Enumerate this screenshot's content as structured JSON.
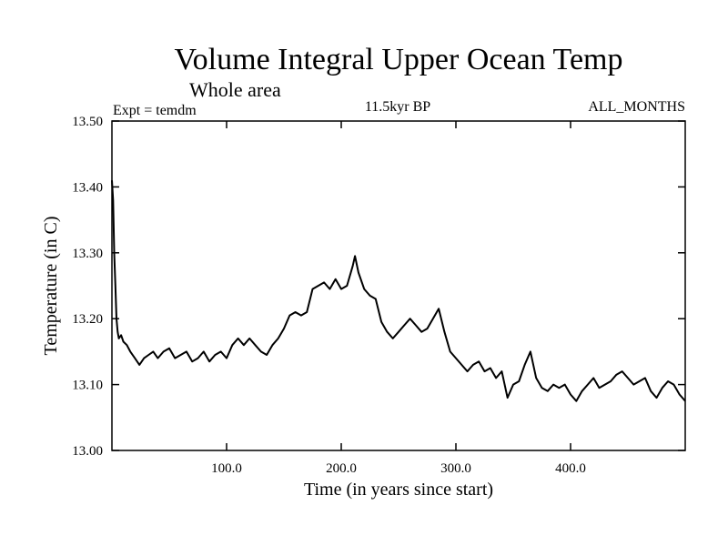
{
  "chart_data": {
    "type": "line",
    "title": "Volume Integral Upper Ocean Temp",
    "subtitle": "Whole area",
    "expt_label": "Expt = temdm",
    "period_label": "11.5kyr BP",
    "months_label": "ALL_MONTHS",
    "xlabel": "Time (in years since start)",
    "ylabel": "Temperature (in C)",
    "xlim": [
      0,
      500
    ],
    "ylim": [
      13.0,
      13.5
    ],
    "xticks": [
      100,
      200,
      300,
      400
    ],
    "xtick_labels": [
      "100.0",
      "200.0",
      "300.0",
      "400.0"
    ],
    "yticks": [
      13.0,
      13.1,
      13.2,
      13.3,
      13.4,
      13.5
    ],
    "ytick_labels": [
      "13.00",
      "13.10",
      "13.20",
      "13.30",
      "13.40",
      "13.50"
    ],
    "grid": false,
    "series": [
      {
        "name": "temdm",
        "color": "#000000",
        "x": [
          0,
          1,
          2,
          3,
          4,
          5,
          6,
          8,
          10,
          13,
          16,
          20,
          24,
          28,
          32,
          36,
          40,
          45,
          50,
          55,
          60,
          65,
          70,
          75,
          80,
          85,
          90,
          95,
          100,
          105,
          110,
          115,
          120,
          125,
          130,
          135,
          140,
          145,
          150,
          155,
          160,
          165,
          170,
          175,
          180,
          185,
          190,
          195,
          200,
          205,
          210,
          212,
          215,
          220,
          225,
          230,
          235,
          240,
          245,
          250,
          255,
          260,
          265,
          270,
          275,
          280,
          285,
          290,
          295,
          300,
          305,
          310,
          315,
          320,
          325,
          330,
          335,
          340,
          345,
          350,
          355,
          360,
          365,
          370,
          375,
          380,
          385,
          390,
          395,
          400,
          405,
          410,
          415,
          420,
          425,
          430,
          435,
          440,
          445,
          450,
          455,
          460,
          465,
          470,
          475,
          480,
          485,
          490,
          495,
          500
        ],
        "values": [
          13.41,
          13.38,
          13.3,
          13.25,
          13.2,
          13.18,
          13.17,
          13.175,
          13.165,
          13.16,
          13.15,
          13.14,
          13.13,
          13.14,
          13.145,
          13.15,
          13.14,
          13.15,
          13.155,
          13.14,
          13.145,
          13.15,
          13.135,
          13.14,
          13.15,
          13.135,
          13.145,
          13.15,
          13.14,
          13.16,
          13.17,
          13.16,
          13.17,
          13.16,
          13.15,
          13.145,
          13.16,
          13.17,
          13.185,
          13.205,
          13.21,
          13.205,
          13.21,
          13.245,
          13.25,
          13.255,
          13.245,
          13.26,
          13.245,
          13.25,
          13.28,
          13.295,
          13.27,
          13.245,
          13.235,
          13.23,
          13.195,
          13.18,
          13.17,
          13.18,
          13.19,
          13.2,
          13.19,
          13.18,
          13.185,
          13.2,
          13.215,
          13.18,
          13.15,
          13.14,
          13.13,
          13.12,
          13.13,
          13.135,
          13.12,
          13.125,
          13.11,
          13.12,
          13.08,
          13.1,
          13.105,
          13.13,
          13.15,
          13.11,
          13.095,
          13.09,
          13.1,
          13.095,
          13.1,
          13.085,
          13.075,
          13.09,
          13.1,
          13.11,
          13.095,
          13.1,
          13.105,
          13.115,
          13.12,
          13.11,
          13.1,
          13.105,
          13.11,
          13.09,
          13.08,
          13.095,
          13.105,
          13.1,
          13.085,
          13.075
        ]
      }
    ]
  }
}
